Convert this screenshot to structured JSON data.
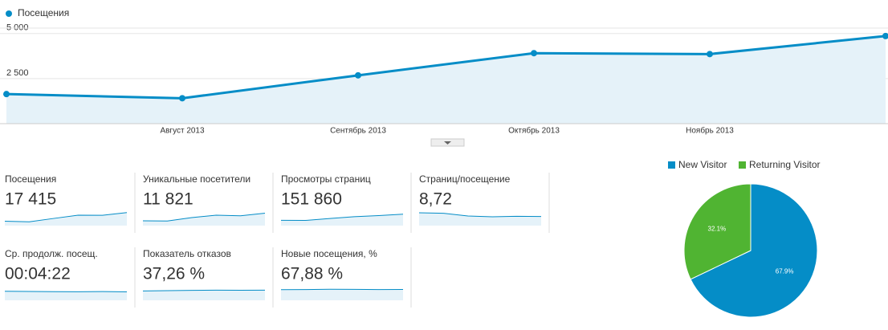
{
  "chart_data": [
    {
      "type": "line",
      "legend": "Посещения",
      "categories": [
        null,
        "Август 2013",
        "Сентябрь 2013",
        "Октябрь 2013",
        "Ноябрь 2013",
        null
      ],
      "series": [
        {
          "name": "Посещения",
          "color": "#058dc7",
          "values": [
            1640,
            1410,
            2680,
            3910,
            3860,
            4860
          ]
        }
      ],
      "ylim": [
        0,
        5300
      ],
      "yticks": [
        {
          "value": 2500,
          "label": "2 500"
        },
        {
          "value": 5000,
          "label": "5 000"
        }
      ],
      "grid": true
    },
    {
      "type": "pie",
      "categories": [
        "New Visitor",
        "Returning Visitor"
      ],
      "values": [
        67.9,
        32.1
      ],
      "value_labels": [
        "67.9%",
        "32.1%"
      ],
      "colors": [
        "#058dc7",
        "#50b432"
      ]
    }
  ],
  "metrics": [
    {
      "label": "Посещения",
      "value": "17 415",
      "trend": {
        "type": "line",
        "values": [
          1640,
          1410,
          2680,
          3910,
          3860,
          4860
        ],
        "ylim": [
          0,
          6000
        ]
      }
    },
    {
      "label": "Уникальные посетители",
      "value": "11 821",
      "trend": {
        "type": "line",
        "values": [
          1200,
          1150,
          2000,
          2600,
          2450,
          3100
        ],
        "ylim": [
          0,
          4000
        ]
      }
    },
    {
      "label": "Просмотры страниц",
      "value": "151 860",
      "trend": {
        "type": "line",
        "values": [
          15000,
          14500,
          20000,
          25000,
          28000,
          32000
        ],
        "ylim": [
          0,
          45000
        ]
      }
    },
    {
      "label": "Страниц/посещение",
      "value": "8,72",
      "trend": {
        "type": "line",
        "values": [
          9.8,
          9.6,
          8.6,
          8.3,
          8.5,
          8.4
        ],
        "ylim": [
          5,
          11
        ]
      }
    },
    {
      "label": "Ср. продолж. посещ.",
      "value": "00:04:22",
      "trend": {
        "type": "line",
        "values": [
          280,
          275,
          270,
          265,
          272,
          262
        ],
        "ylim": [
          0,
          500
        ]
      }
    },
    {
      "label": "Показатель отказов",
      "value": "37,26 %",
      "trend": {
        "type": "line",
        "values": [
          35,
          36,
          37,
          38,
          37.5,
          37.8
        ],
        "ylim": [
          0,
          60
        ]
      }
    },
    {
      "label": "Новые посещения, %",
      "value": "67,88 %",
      "trend": {
        "type": "line",
        "values": [
          66,
          67,
          69,
          68,
          67,
          67.5
        ],
        "ylim": [
          0,
          100
        ]
      }
    }
  ]
}
